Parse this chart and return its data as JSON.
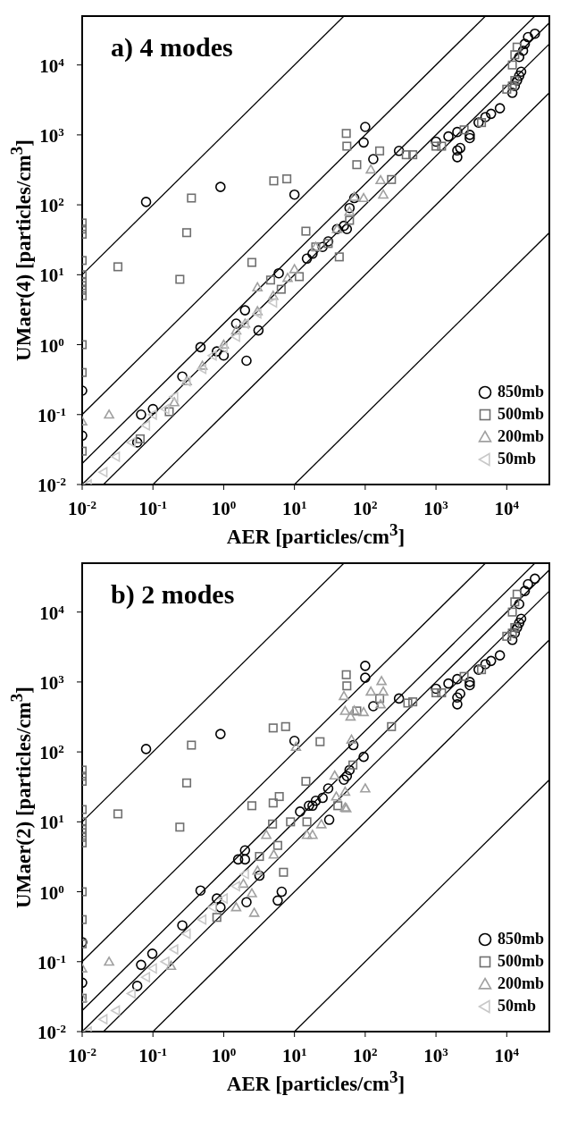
{
  "chart_data": [
    {
      "type": "scatter",
      "title": "a) 4 modes",
      "xlabel": "AER [particles/cm$^{3}$]",
      "ylabel": "UMaer(4) [particles/cm$^{3}$]",
      "log": "xy",
      "legend": "bottom right",
      "xlim": [
        0.01,
        40000
      ],
      "ylim": [
        0.01,
        50000
      ],
      "xticks": [
        {
          "value": 0.01,
          "label": "10$^{-2}$"
        },
        {
          "value": 0.1,
          "label": "10$^{-1}$"
        },
        {
          "value": 1,
          "label": "10$^{0}$"
        },
        {
          "value": 10,
          "label": "10$^{1}$"
        },
        {
          "value": 100,
          "label": "10$^{2}$"
        },
        {
          "value": 1000,
          "label": "10$^{3}$"
        },
        {
          "value": 10000,
          "label": "10$^{4}$"
        }
      ],
      "yticks": [
        {
          "value": 0.01,
          "label": "10$^{-2}$"
        },
        {
          "value": 0.1,
          "label": "10$^{-1}$"
        },
        {
          "value": 1,
          "label": "10$^{0}$"
        },
        {
          "value": 10,
          "label": "10$^{1}$"
        },
        {
          "value": 100,
          "label": "10$^{2}$"
        },
        {
          "value": 1000,
          "label": "10$^{3}$"
        },
        {
          "value": 10000,
          "label": "10$^{4}$"
        }
      ],
      "series": [
        {
          "type": "line",
          "color": "#000000",
          "x": [
            0.01,
            40000
          ],
          "values": [
            0.01,
            40000
          ]
        },
        {
          "type": "line",
          "color": "#000000",
          "x": [
            0.01,
            25000
          ],
          "values": [
            0.02,
            50000
          ]
        },
        {
          "type": "line",
          "color": "#000000",
          "x": [
            0.02,
            40000
          ],
          "values": [
            0.01,
            20000
          ]
        },
        {
          "type": "line",
          "color": "#000000",
          "x": [
            0.01,
            5000
          ],
          "values": [
            0.1,
            50000
          ]
        },
        {
          "type": "line",
          "color": "#000000",
          "x": [
            0.01,
            50
          ],
          "values": [
            10,
            50000
          ]
        },
        {
          "type": "line",
          "color": "#000000",
          "x": [
            0.1,
            40000
          ],
          "values": [
            0.01,
            4000
          ]
        },
        {
          "type": "line",
          "color": "#000000",
          "x": [
            10,
            40000
          ],
          "values": [
            0.01,
            40
          ]
        },
        {
          "name": "850mb",
          "color": "#000000",
          "marker": "circle",
          "x": [
            0.01,
            0.01,
            0.08,
            0.9,
            10,
            100,
            95,
            130,
            300,
            70,
            60,
            50,
            55,
            15,
            18,
            25,
            30,
            40,
            6,
            2,
            3.1,
            2.1,
            0.47,
            0.26,
            0.068,
            0.1,
            0.06,
            1,
            0.8,
            1.5,
            1000,
            1500,
            2000,
            2000,
            2200,
            2000,
            3000,
            3000,
            4000,
            5000,
            6000,
            8000,
            12000,
            13000,
            14000,
            15000,
            16000,
            15000,
            18000,
            20000,
            25000,
            17000
          ],
          "values": [
            0.22,
            0.05,
            110,
            180,
            140,
            1300,
            780,
            450,
            590,
            125,
            90,
            50,
            45,
            17,
            20,
            25,
            30,
            45,
            10.5,
            3.1,
            1.6,
            0.59,
            0.92,
            0.35,
            0.1,
            0.12,
            0.04,
            0.7,
            0.8,
            2,
            800,
            950,
            600,
            480,
            650,
            1100,
            1000,
            900,
            1500,
            1800,
            2000,
            2400,
            4000,
            5000,
            6000,
            7000,
            8000,
            13000,
            20000,
            25000,
            28000,
            16000
          ]
        },
        {
          "name": "500mb",
          "color": "#707070",
          "marker": "square",
          "x": [
            0.01,
            0.01,
            0.01,
            0.01,
            0.01,
            0.01,
            0.01,
            0.01,
            0.01,
            0.01,
            0.01,
            0.01,
            0.032,
            0.24,
            0.3,
            0.35,
            5.1,
            7.8,
            2.5,
            14.5,
            43,
            54,
            55,
            76,
            160,
            235,
            380,
            470,
            1000,
            1200,
            2500,
            4400,
            10000,
            12000,
            13000,
            12000,
            13000,
            14000,
            4.6,
            11.7,
            0.066,
            0.17,
            6.5,
            20,
            30,
            60
          ],
          "values": [
            55,
            45,
            38,
            16,
            10,
            8,
            7,
            6,
            5,
            1,
            0.4,
            0.03,
            13,
            8.6,
            40,
            125,
            220,
            235,
            15,
            42,
            18,
            1050,
            690,
            375,
            590,
            230,
            520,
            520,
            690,
            690,
            1180,
            1500,
            4500,
            5000,
            6000,
            10000,
            14000,
            18000,
            8.4,
            9.4,
            0.045,
            0.11,
            6.2,
            25,
            28,
            60
          ]
        },
        {
          "name": "200mb",
          "color": "#a0a0a0",
          "marker": "triangle",
          "x": [
            0.01,
            0.024,
            0.2,
            0.5,
            1,
            2,
            3,
            3,
            5,
            10,
            20,
            40,
            60,
            70,
            120,
            180,
            165,
            95,
            0.3,
            1.5,
            8
          ],
          "values": [
            0.08,
            0.1,
            0.15,
            0.5,
            1,
            2,
            3,
            6.6,
            5,
            12,
            25,
            45,
            80,
            130,
            320,
            140,
            225,
            125,
            0.3,
            1.6,
            9
          ]
        },
        {
          "name": "50mb",
          "color": "#c8c8c8",
          "marker": "triangle-left",
          "x": [
            0.012,
            0.02,
            0.03,
            0.05,
            0.08,
            0.1,
            0.15,
            0.2,
            0.3,
            0.5,
            0.7,
            1,
            1.5,
            2,
            3,
            5
          ],
          "values": [
            0.01,
            0.015,
            0.025,
            0.04,
            0.07,
            0.1,
            0.12,
            0.18,
            0.3,
            0.45,
            0.7,
            0.9,
            1.3,
            2,
            2.8,
            4
          ]
        }
      ]
    },
    {
      "type": "scatter",
      "title": "b) 2 modes",
      "xlabel": "AER [particles/cm$^{3}$]",
      "ylabel": "UMaer(2) [particles/cm$^{3}$]",
      "log": "xy",
      "legend": "bottom right",
      "xlim": [
        0.01,
        40000
      ],
      "ylim": [
        0.01,
        50000
      ],
      "xticks": [
        {
          "value": 0.01,
          "label": "10$^{-2}$"
        },
        {
          "value": 0.1,
          "label": "10$^{-1}$"
        },
        {
          "value": 1,
          "label": "10$^{0}$"
        },
        {
          "value": 10,
          "label": "10$^{1}$"
        },
        {
          "value": 100,
          "label": "10$^{2}$"
        },
        {
          "value": 1000,
          "label": "10$^{3}$"
        },
        {
          "value": 10000,
          "label": "10$^{4}$"
        }
      ],
      "yticks": [
        {
          "value": 0.01,
          "label": "10$^{-2}$"
        },
        {
          "value": 0.1,
          "label": "10$^{-1}$"
        },
        {
          "value": 1,
          "label": "10$^{0}$"
        },
        {
          "value": 10,
          "label": "10$^{1}$"
        },
        {
          "value": 100,
          "label": "10$^{2}$"
        },
        {
          "value": 1000,
          "label": "10$^{3}$"
        },
        {
          "value": 10000,
          "label": "10$^{4}$"
        }
      ],
      "series": [
        {
          "type": "line",
          "color": "#000000",
          "x": [
            0.01,
            40000
          ],
          "values": [
            0.01,
            40000
          ]
        },
        {
          "type": "line",
          "color": "#000000",
          "x": [
            0.01,
            25000
          ],
          "values": [
            0.02,
            50000
          ]
        },
        {
          "type": "line",
          "color": "#000000",
          "x": [
            0.02,
            40000
          ],
          "values": [
            0.01,
            20000
          ]
        },
        {
          "type": "line",
          "color": "#000000",
          "x": [
            0.01,
            5000
          ],
          "values": [
            0.1,
            50000
          ]
        },
        {
          "type": "line",
          "color": "#000000",
          "x": [
            0.01,
            50
          ],
          "values": [
            10,
            50000
          ]
        },
        {
          "type": "line",
          "color": "#000000",
          "x": [
            0.1,
            40000
          ],
          "values": [
            0.01,
            4000
          ]
        },
        {
          "type": "line",
          "color": "#000000",
          "x": [
            10,
            40000
          ],
          "values": [
            0.01,
            40
          ]
        },
        {
          "name": "850mb",
          "color": "#000000",
          "marker": "circle",
          "x": [
            0.01,
            0.01,
            0.08,
            0.9,
            10,
            100,
            100,
            130,
            300,
            68,
            95,
            60,
            55,
            50,
            12,
            16,
            18,
            20,
            25,
            30,
            31,
            5.8,
            6.6,
            2,
            1.6,
            2,
            2.1,
            3.2,
            0.47,
            0.26,
            0.068,
            0.098,
            0.06,
            0.8,
            0.9,
            1000,
            1500,
            2000,
            2000,
            2200,
            2000,
            3000,
            3000,
            4000,
            5000,
            6000,
            8000,
            12000,
            13000,
            14000,
            15000,
            16000,
            15000,
            18000,
            20000,
            25000
          ],
          "values": [
            0.19,
            0.05,
            110,
            180,
            144,
            1700,
            1150,
            450,
            580,
            125,
            85,
            55,
            45,
            40,
            14,
            17,
            17,
            20,
            22,
            30,
            10.7,
            0.75,
            1,
            3.9,
            2.9,
            2.9,
            0.71,
            1.7,
            1.04,
            0.33,
            0.09,
            0.13,
            0.045,
            0.8,
            0.6,
            800,
            950,
            600,
            480,
            680,
            1100,
            1000,
            900,
            1500,
            1800,
            2000,
            2400,
            4000,
            5000,
            6000,
            7000,
            8000,
            13000,
            20000,
            25000,
            30000
          ]
        },
        {
          "name": "500mb",
          "color": "#707070",
          "marker": "square",
          "x": [
            0.01,
            0.01,
            0.01,
            0.01,
            0.01,
            0.01,
            0.01,
            0.01,
            0.01,
            0.01,
            0.01,
            0.01,
            0.01,
            0.032,
            0.24,
            0.3,
            0.35,
            5,
            7.5,
            2.5,
            5,
            6.1,
            14.5,
            23,
            54,
            55,
            76,
            67,
            160,
            235,
            400,
            470,
            1000,
            1200,
            2500,
            4400,
            10000,
            12000,
            13000,
            12000,
            13000,
            14000,
            4.9,
            8.8,
            15,
            3.2,
            5.8,
            7,
            0.8,
            41
          ],
          "values": [
            55,
            45,
            38,
            15,
            10,
            8,
            7,
            6,
            5,
            1,
            0.4,
            0.18,
            0.03,
            13,
            8.4,
            36,
            125,
            220,
            230,
            17,
            18.6,
            23,
            38,
            140,
            1270,
            880,
            385,
            65,
            580,
            230,
            500,
            520,
            700,
            700,
            1200,
            1500,
            4500,
            5000,
            6000,
            10000,
            14000,
            18000,
            9.3,
            10,
            10,
            3.2,
            4.6,
            1.9,
            0.43,
            17
          ]
        },
        {
          "name": "200mb",
          "color": "#a0a0a0",
          "marker": "triangle",
          "x": [
            0.01,
            0.01,
            0.024,
            10.5,
            50,
            52,
            62,
            70,
            95,
            120,
            170,
            180,
            165,
            64,
            37,
            52,
            100,
            52,
            39,
            15,
            18,
            4,
            5.1,
            24,
            54,
            3,
            1.9,
            2.5,
            2.7,
            1.5,
            0.18
          ],
          "values": [
            0.08,
            0.03,
            0.1,
            118,
            630,
            385,
            320,
            390,
            370,
            730,
            1030,
            730,
            480,
            150,
            46,
            27,
            30,
            16,
            23,
            6.5,
            6.5,
            6.5,
            3.4,
            9.2,
            15.6,
            2,
            1.3,
            0.95,
            0.5,
            0.6,
            0.087
          ]
        },
        {
          "name": "50mb",
          "color": "#c8c8c8",
          "marker": "triangle-left",
          "x": [
            0.012,
            0.02,
            0.03,
            0.05,
            0.08,
            0.1,
            0.15,
            0.2,
            0.3,
            0.5,
            0.7,
            1,
            1.5,
            2
          ],
          "values": [
            0.01,
            0.015,
            0.02,
            0.035,
            0.06,
            0.08,
            0.1,
            0.15,
            0.25,
            0.4,
            0.6,
            0.8,
            1.2,
            1.8
          ]
        }
      ]
    }
  ]
}
